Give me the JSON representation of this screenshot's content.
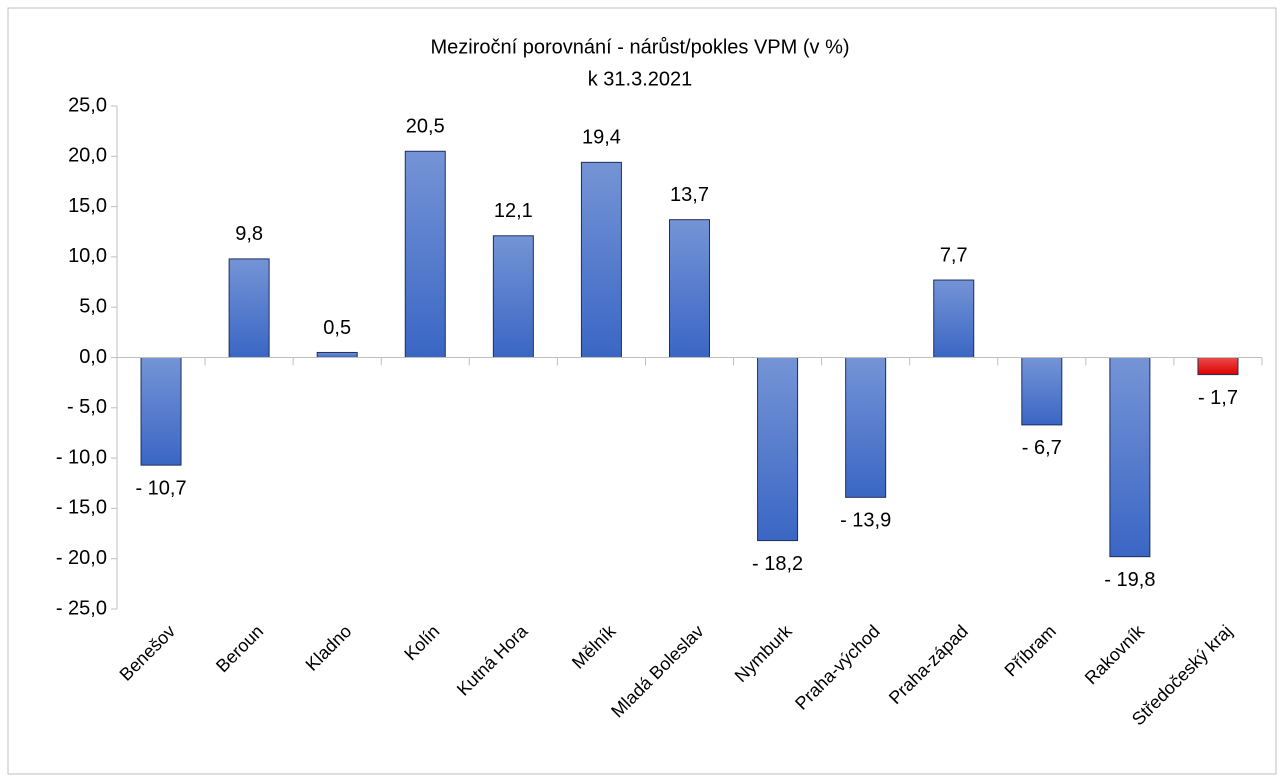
{
  "chart_data": {
    "type": "bar",
    "title": "Meziroční porovnání - nárůst/pokles VPM (v %)",
    "subtitle": "k 31.3.2021",
    "categories": [
      "Benešov",
      "Beroun",
      "Kladno",
      "Kolín",
      "Kutná Hora",
      "Mělník",
      "Mladá Boleslav",
      "Nymburk",
      "Praha-východ",
      "Praha-západ",
      "Příbram",
      "Rakovník",
      "Středočeský kraj"
    ],
    "values": [
      -10.7,
      9.8,
      0.5,
      20.5,
      12.1,
      19.4,
      13.7,
      -18.2,
      -13.9,
      7.7,
      -6.7,
      -19.8,
      -1.7
    ],
    "value_labels": [
      "- 10,7",
      "9,8",
      "0,5",
      "20,5",
      "12,1",
      "19,4",
      "13,7",
      "- 18,2",
      "- 13,9",
      "7,7",
      "- 6,7",
      "- 19,8",
      "- 1,7"
    ],
    "colors": [
      "#3a66c4",
      "#3a66c4",
      "#3a66c4",
      "#3a66c4",
      "#3a66c4",
      "#3a66c4",
      "#3a66c4",
      "#3a66c4",
      "#3a66c4",
      "#3a66c4",
      "#3a66c4",
      "#3a66c4",
      "#e00000"
    ],
    "ylim": [
      -25,
      25
    ],
    "yticks": [
      {
        "value": -25,
        "label": "- 25,0"
      },
      {
        "value": -20,
        "label": "- 20,0"
      },
      {
        "value": -15,
        "label": "- 15,0"
      },
      {
        "value": -10,
        "label": "- 10,0"
      },
      {
        "value": -5,
        "label": "- 5,0"
      },
      {
        "value": 0,
        "label": "0,0"
      },
      {
        "value": 5,
        "label": "5,0"
      },
      {
        "value": 10,
        "label": "10,0"
      },
      {
        "value": 15,
        "label": "15,0"
      },
      {
        "value": 20,
        "label": "20,0"
      },
      {
        "value": 25,
        "label": "25,0"
      }
    ],
    "grid": false
  }
}
